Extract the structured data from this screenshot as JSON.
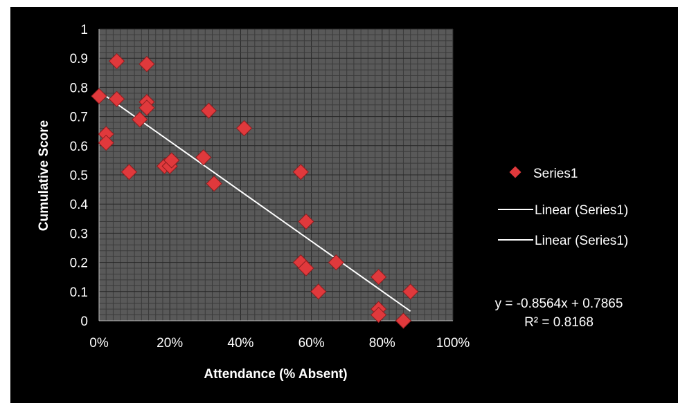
{
  "chart_data": {
    "type": "scatter",
    "xlabel": "Attendance (% Absent)",
    "ylabel": "Cumulative Score",
    "xlim": [
      0,
      1
    ],
    "ylim": [
      0,
      1
    ],
    "x_ticks": [
      "0%",
      "20%",
      "40%",
      "60%",
      "80%",
      "100%"
    ],
    "x_tick_values": [
      0,
      0.2,
      0.4,
      0.6,
      0.8,
      1.0
    ],
    "y_ticks": [
      "0",
      "0.1",
      "0.2",
      "0.3",
      "0.4",
      "0.5",
      "0.6",
      "0.7",
      "0.8",
      "0.9",
      "1"
    ],
    "y_tick_values": [
      0,
      0.1,
      0.2,
      0.3,
      0.4,
      0.5,
      0.6,
      0.7,
      0.8,
      0.9,
      1.0
    ],
    "grid": true,
    "legend_position": "right",
    "background_color": "#000000",
    "plot_background_color": "#595959",
    "marker_color": "#e0393c",
    "trendline_color": "#ffffff",
    "series": [
      {
        "name": "Series1",
        "x": [
          0.0,
          0.02,
          0.02,
          0.05,
          0.05,
          0.085,
          0.115,
          0.135,
          0.135,
          0.135,
          0.185,
          0.2,
          0.205,
          0.295,
          0.31,
          0.325,
          0.41,
          0.57,
          0.57,
          0.585,
          0.585,
          0.62,
          0.67,
          0.79,
          0.79,
          0.79,
          0.86,
          0.88
        ],
        "y": [
          0.77,
          0.64,
          0.61,
          0.89,
          0.76,
          0.51,
          0.69,
          0.88,
          0.75,
          0.73,
          0.53,
          0.53,
          0.55,
          0.56,
          0.72,
          0.47,
          0.66,
          0.51,
          0.2,
          0.34,
          0.18,
          0.1,
          0.2,
          0.15,
          0.04,
          0.02,
          0.0,
          0.1
        ]
      }
    ],
    "trendline": {
      "slope": -0.8564,
      "intercept": 0.7865,
      "x_range": [
        0,
        0.88
      ],
      "equation": "y = -0.8564x + 0.7865",
      "r_squared": "R² = 0.8168"
    },
    "legend": [
      {
        "label": "Series1",
        "kind": "marker"
      },
      {
        "label": "Linear (Series1)",
        "kind": "line"
      },
      {
        "label": "Linear (Series1)",
        "kind": "line"
      }
    ]
  }
}
